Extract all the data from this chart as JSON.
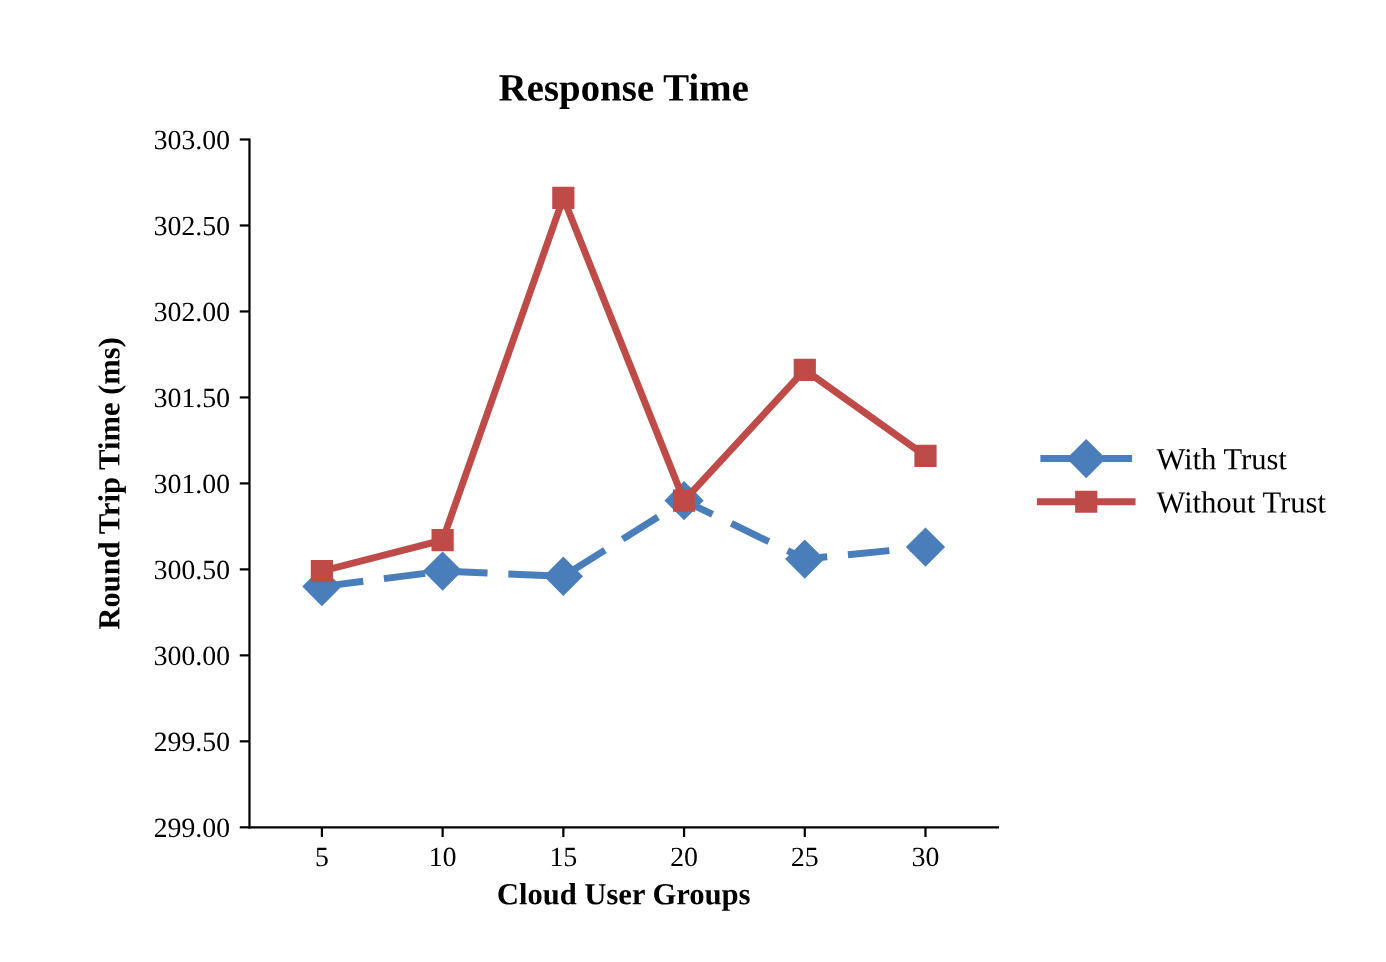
{
  "chart_data": {
    "type": "line",
    "title": "Response Time",
    "xlabel": "Cloud User Groups",
    "ylabel": "Round Trip Time (ms)",
    "categories": [
      "5",
      "10",
      "15",
      "20",
      "25",
      "30"
    ],
    "series": [
      {
        "name": "With Trust",
        "color": "#4a7ebb",
        "marker": "diamond",
        "line_style": "dashed",
        "values": [
          300.4,
          300.49,
          300.46,
          300.9,
          300.56,
          300.63
        ]
      },
      {
        "name": "Without Trust",
        "color": "#be4b48",
        "marker": "square",
        "line_style": "solid",
        "values": [
          300.49,
          300.67,
          302.66,
          300.9,
          301.66,
          301.16
        ]
      }
    ],
    "ylim": [
      299,
      303
    ],
    "yticks": [
      {
        "value": 299,
        "label": "299.00"
      },
      {
        "value": 299.5,
        "label": "299.50"
      },
      {
        "value": 300,
        "label": "300.00"
      },
      {
        "value": 300.5,
        "label": "300.50"
      },
      {
        "value": 301,
        "label": "301.00"
      },
      {
        "value": 301.5,
        "label": "301.50"
      },
      {
        "value": 302,
        "label": "302.00"
      },
      {
        "value": 302.5,
        "label": "302.50"
      },
      {
        "value": 303,
        "label": "303.00"
      }
    ],
    "grid": false,
    "legend": "right"
  }
}
